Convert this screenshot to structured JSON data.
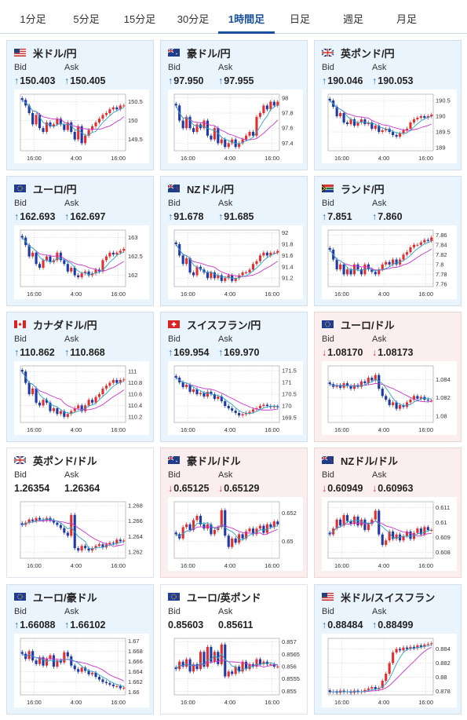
{
  "tabs": [
    "1分足",
    "5分足",
    "15分足",
    "30分足",
    "1時間足",
    "日足",
    "週足",
    "月足"
  ],
  "active_tab": "1時間足",
  "labels": {
    "bid": "Bid",
    "ask": "Ask"
  },
  "colors": {
    "up_bg": "#eaf4fc",
    "down_bg": "#fbeeee",
    "neutral_bg": "#ffffff",
    "bull_candle": "#e23030",
    "bear_candle": "#1f3aa8",
    "ma_slow": "#cc33cc",
    "ma_fast": "#27a4c8",
    "tab_active": "#1a4f9c"
  },
  "pairs": [
    {
      "name": "米ドル/円",
      "flag": "us-flag-icon",
      "trend": "up",
      "bid_dir": "up",
      "ask_dir": "up",
      "bid": "150.403",
      "ask": "150.405",
      "chart_data": {
        "type": "candlestick",
        "x_ticks": [
          "16:00",
          "4:00",
          "16:00"
        ],
        "y_ticks": [
          "150.5",
          "150",
          "149.5"
        ],
        "ylim": [
          149.2,
          150.7
        ],
        "close": [
          150.55,
          150.4,
          150.2,
          149.9,
          150.15,
          149.8,
          149.7,
          149.95,
          149.85,
          149.9,
          150.05,
          149.9,
          149.75,
          149.95,
          149.7,
          149.5,
          149.85,
          149.4,
          149.6,
          149.75,
          149.85,
          149.95,
          150.05,
          150.15,
          150.2,
          150.3,
          150.35,
          150.3,
          150.4,
          150.4
        ]
      }
    },
    {
      "name": "豪ドル/円",
      "flag": "au-flag-icon",
      "trend": "up",
      "bid_dir": "up",
      "ask_dir": "up",
      "bid": "97.950",
      "ask": "97.955",
      "chart_data": {
        "type": "candlestick",
        "x_ticks": [
          "16:00",
          "4:00",
          "16:00"
        ],
        "y_ticks": [
          "98",
          "97.8",
          "97.6",
          "97.4"
        ],
        "ylim": [
          97.3,
          98.05
        ],
        "close": [
          97.9,
          97.7,
          97.6,
          97.75,
          97.6,
          97.55,
          97.65,
          97.6,
          97.7,
          97.5,
          97.45,
          97.6,
          97.4,
          97.45,
          97.35,
          97.4,
          97.45,
          97.35,
          97.4,
          97.45,
          97.5,
          97.55,
          97.5,
          97.75,
          97.8,
          97.9,
          97.85,
          97.95,
          97.9,
          97.95
        ]
      }
    },
    {
      "name": "英ポンド/円",
      "flag": "uk-flag-icon",
      "trend": "up",
      "bid_dir": "up",
      "ask_dir": "up",
      "bid": "190.046",
      "ask": "190.053",
      "chart_data": {
        "type": "candlestick",
        "x_ticks": [
          "16:00",
          "4:00",
          "16:00"
        ],
        "y_ticks": [
          "190.5",
          "190",
          "189.5",
          "189"
        ],
        "ylim": [
          188.9,
          190.7
        ],
        "close": [
          190.5,
          190.3,
          190.0,
          190.1,
          189.8,
          189.75,
          189.9,
          189.7,
          189.8,
          189.9,
          189.75,
          189.8,
          189.6,
          189.7,
          189.5,
          189.55,
          189.6,
          189.5,
          189.4,
          189.35,
          189.45,
          189.55,
          189.6,
          189.8,
          189.9,
          189.95,
          190.0,
          189.95,
          190.0,
          190.05
        ]
      }
    },
    {
      "name": "ユーロ/円",
      "flag": "eu-flag-icon",
      "trend": "up",
      "bid_dir": "up",
      "ask_dir": "up",
      "bid": "162.693",
      "ask": "162.697",
      "chart_data": {
        "type": "candlestick",
        "x_ticks": [
          "16:00",
          "4:00",
          "16:00"
        ],
        "y_ticks": [
          "163",
          "162.5",
          "162"
        ],
        "ylim": [
          161.7,
          163.2
        ],
        "close": [
          163.0,
          162.8,
          162.5,
          162.6,
          162.3,
          162.2,
          162.4,
          162.5,
          162.35,
          162.4,
          162.6,
          162.4,
          162.3,
          162.1,
          162.2,
          162.0,
          161.95,
          162.05,
          162.1,
          162.0,
          162.05,
          162.15,
          162.1,
          162.4,
          162.5,
          162.6,
          162.55,
          162.6,
          162.65,
          162.7
        ]
      }
    },
    {
      "name": "NZドル/円",
      "flag": "nz-flag-icon",
      "trend": "up",
      "bid_dir": "up",
      "ask_dir": "up",
      "bid": "91.678",
      "ask": "91.685",
      "chart_data": {
        "type": "candlestick",
        "x_ticks": [
          "16:00",
          "4:00",
          "16:00"
        ],
        "y_ticks": [
          "92",
          "91.8",
          "91.6",
          "91.4",
          "91.2"
        ],
        "ylim": [
          91.05,
          92.05
        ],
        "close": [
          91.8,
          91.6,
          91.45,
          91.55,
          91.3,
          91.25,
          91.4,
          91.35,
          91.3,
          91.2,
          91.3,
          91.2,
          91.25,
          91.15,
          91.2,
          91.25,
          91.15,
          91.2,
          91.25,
          91.3,
          91.3,
          91.35,
          91.45,
          91.5,
          91.6,
          91.65,
          91.6,
          91.65,
          91.65,
          91.68
        ]
      }
    },
    {
      "name": "ランド/円",
      "flag": "za-flag-icon",
      "trend": "up",
      "bid_dir": "up",
      "ask_dir": "up",
      "bid": "7.851",
      "ask": "7.860",
      "chart_data": {
        "type": "candlestick",
        "x_ticks": [
          "16:00",
          "4:00",
          "16:00"
        ],
        "y_ticks": [
          "7.86",
          "7.84",
          "7.82",
          "7.8",
          "7.78",
          "7.76"
        ],
        "ylim": [
          7.755,
          7.87
        ],
        "close": [
          7.83,
          7.81,
          7.79,
          7.8,
          7.78,
          7.79,
          7.78,
          7.8,
          7.79,
          7.78,
          7.8,
          7.79,
          7.785,
          7.78,
          7.79,
          7.8,
          7.805,
          7.8,
          7.81,
          7.8,
          7.81,
          7.82,
          7.825,
          7.835,
          7.84,
          7.84,
          7.845,
          7.85,
          7.848,
          7.855
        ]
      }
    },
    {
      "name": "カナダドル/円",
      "flag": "ca-flag-icon",
      "trend": "up",
      "bid_dir": "up",
      "ask_dir": "up",
      "bid": "110.862",
      "ask": "110.868",
      "chart_data": {
        "type": "candlestick",
        "x_ticks": [
          "16:00",
          "4:00",
          "16:00"
        ],
        "y_ticks": [
          "111",
          "110.8",
          "110.6",
          "110.4",
          "110.2"
        ],
        "ylim": [
          110.1,
          111.1
        ],
        "close": [
          111.0,
          110.8,
          110.6,
          110.7,
          110.45,
          110.4,
          110.5,
          110.45,
          110.3,
          110.35,
          110.25,
          110.3,
          110.2,
          110.25,
          110.3,
          110.35,
          110.4,
          110.3,
          110.4,
          110.5,
          110.45,
          110.55,
          110.6,
          110.7,
          110.75,
          110.8,
          110.85,
          110.8,
          110.85,
          110.86
        ]
      }
    },
    {
      "name": "スイスフラン/円",
      "flag": "ch-flag-icon",
      "trend": "up",
      "bid_dir": "up",
      "ask_dir": "up",
      "bid": "169.954",
      "ask": "169.970",
      "chart_data": {
        "type": "candlestick",
        "x_ticks": [
          "16:00",
          "4:00",
          "16:00"
        ],
        "y_ticks": [
          "171.5",
          "171",
          "170.5",
          "170",
          "169.5"
        ],
        "ylim": [
          169.3,
          171.7
        ],
        "close": [
          171.2,
          171.0,
          170.8,
          170.9,
          170.6,
          170.7,
          170.5,
          170.55,
          170.4,
          170.6,
          170.5,
          170.3,
          170.4,
          170.2,
          170.0,
          169.9,
          169.8,
          169.7,
          169.6,
          169.65,
          169.7,
          169.75,
          169.85,
          169.9,
          170.0,
          170.05,
          170.0,
          169.95,
          169.98,
          169.95
        ]
      }
    },
    {
      "name": "ユーロ/ドル",
      "flag": "eu-flag-icon",
      "trend": "down",
      "bid_dir": "down",
      "ask_dir": "down",
      "bid": "1.08170",
      "ask": "1.08173",
      "chart_data": {
        "type": "candlestick",
        "x_ticks": [
          "16:00",
          "4:00",
          "16:00"
        ],
        "y_ticks": [
          "1.084",
          "1.082",
          "1.08"
        ],
        "ylim": [
          1.0793,
          1.0855
        ],
        "close": [
          1.0835,
          1.0832,
          1.0834,
          1.0831,
          1.0836,
          1.0833,
          1.083,
          1.0834,
          1.0832,
          1.0838,
          1.0836,
          1.0842,
          1.0839,
          1.0845,
          1.083,
          1.0822,
          1.0818,
          1.0812,
          1.0815,
          1.0808,
          1.0812,
          1.081,
          1.0815,
          1.0818,
          1.0822,
          1.0819,
          1.0821,
          1.0818,
          1.0817,
          1.0817
        ]
      }
    },
    {
      "name": "英ポンド/ドル",
      "flag": "uk-flag-icon",
      "trend": "neutral",
      "bid_dir": "none",
      "ask_dir": "none",
      "bid": "1.26354",
      "ask": "1.26364",
      "chart_data": {
        "type": "candlestick",
        "x_ticks": [
          "16:00",
          "4:00",
          "16:00"
        ],
        "y_ticks": [
          "1.268",
          "1.266",
          "1.264",
          "1.262"
        ],
        "ylim": [
          1.2612,
          1.2685
        ],
        "close": [
          1.2655,
          1.2658,
          1.2662,
          1.266,
          1.2664,
          1.2662,
          1.2661,
          1.2664,
          1.2661,
          1.2658,
          1.2655,
          1.2651,
          1.2645,
          1.2641,
          1.2668,
          1.2625,
          1.2622,
          1.2628,
          1.2625,
          1.2622,
          1.2625,
          1.2628,
          1.263,
          1.2626,
          1.263,
          1.2632,
          1.2631,
          1.2636,
          1.2634,
          1.2635
        ]
      }
    },
    {
      "name": "豪ドル/ドル",
      "flag": "au-flag-icon",
      "trend": "down",
      "bid_dir": "down",
      "ask_dir": "down",
      "bid": "0.65125",
      "ask": "0.65129",
      "chart_data": {
        "type": "candlestick",
        "x_ticks": [
          "16:00",
          "4:00",
          "16:00"
        ],
        "y_ticks": [
          "0.652",
          "0.65"
        ],
        "ylim": [
          0.6488,
          0.6528
        ],
        "close": [
          0.6505,
          0.6502,
          0.651,
          0.6512,
          0.6508,
          0.6515,
          0.6518,
          0.6512,
          0.6509,
          0.6512,
          0.6505,
          0.6508,
          0.651,
          0.6522,
          0.6504,
          0.6496,
          0.6502,
          0.6499,
          0.6505,
          0.6502,
          0.6507,
          0.6509,
          0.6505,
          0.6509,
          0.6511,
          0.6506,
          0.6512,
          0.651,
          0.6514,
          0.6512
        ]
      }
    },
    {
      "name": "NZドル/ドル",
      "flag": "nz-flag-icon",
      "trend": "down",
      "bid_dir": "down",
      "ask_dir": "down",
      "bid": "0.60949",
      "ask": "0.60963",
      "chart_data": {
        "type": "candlestick",
        "x_ticks": [
          "16:00",
          "4:00",
          "16:00"
        ],
        "y_ticks": [
          "0.611",
          "0.61",
          "0.609",
          "0.608"
        ],
        "ylim": [
          0.6076,
          0.6114
        ],
        "close": [
          0.6092,
          0.6096,
          0.6102,
          0.6098,
          0.6105,
          0.6101,
          0.6099,
          0.6104,
          0.6098,
          0.6102,
          0.6095,
          0.6099,
          0.6102,
          0.6108,
          0.6092,
          0.6085,
          0.6088,
          0.6094,
          0.6089,
          0.6092,
          0.6088,
          0.6091,
          0.6094,
          0.6089,
          0.6093,
          0.6096,
          0.6092,
          0.6097,
          0.6095,
          0.6095
        ]
      }
    },
    {
      "name": "ユーロ/豪ドル",
      "flag": "eu-flag-icon",
      "trend": "up",
      "bid_dir": "up",
      "ask_dir": "up",
      "bid": "1.66088",
      "ask": "1.66102",
      "chart_data": {
        "type": "candlestick",
        "x_ticks": [
          "16:00",
          "4:00",
          "16:00"
        ],
        "y_ticks": [
          "1.67",
          "1.668",
          "1.666",
          "1.664",
          "1.662",
          "1.66"
        ],
        "ylim": [
          1.6595,
          1.6705
        ],
        "close": [
          1.6675,
          1.6665,
          1.668,
          1.6662,
          1.6655,
          1.6668,
          1.6652,
          1.6665,
          1.6672,
          1.665,
          1.6662,
          1.6658,
          1.6678,
          1.667,
          1.6652,
          1.6645,
          1.664,
          1.6648,
          1.6642,
          1.6635,
          1.6638,
          1.663,
          1.6625,
          1.662,
          1.6618,
          1.6615,
          1.6612,
          1.6612,
          1.6608,
          1.6609
        ]
      }
    },
    {
      "name": "ユーロ/英ポンド",
      "flag": "eu-flag-icon",
      "trend": "neutral",
      "bid_dir": "none",
      "ask_dir": "none",
      "bid": "0.85603",
      "ask": "0.85611",
      "chart_data": {
        "type": "candlestick",
        "x_ticks": [
          "16:00",
          "4:00",
          "16:00"
        ],
        "y_ticks": [
          "0.857",
          "0.8565",
          "0.856",
          "0.8555",
          "0.855"
        ],
        "ylim": [
          0.85485,
          0.85715
        ],
        "close": [
          0.8559,
          0.8562,
          0.856,
          0.8563,
          0.8558,
          0.8561,
          0.8559,
          0.8566,
          0.856,
          0.8568,
          0.8562,
          0.8566,
          0.8561,
          0.8569,
          0.8556,
          0.8558,
          0.8557,
          0.856,
          0.8558,
          0.8562,
          0.8559,
          0.8561,
          0.856,
          0.8563,
          0.8561,
          0.8562,
          0.8561,
          0.8561,
          0.856,
          0.856
        ]
      }
    },
    {
      "name": "米ドル/スイスフラン",
      "flag": "us-flag-icon",
      "trend": "up",
      "bid_dir": "up",
      "ask_dir": "up",
      "bid": "0.88484",
      "ask": "0.88499",
      "chart_data": {
        "type": "candlestick",
        "x_ticks": [
          "16:00",
          "4:00",
          "16:00"
        ],
        "y_ticks": [
          "0.884",
          "0.882",
          "0.88",
          "0.878"
        ],
        "ylim": [
          0.8775,
          0.8855
        ],
        "close": [
          0.8779,
          0.878,
          0.8778,
          0.8781,
          0.8779,
          0.878,
          0.8778,
          0.8781,
          0.8779,
          0.878,
          0.8782,
          0.8784,
          0.8786,
          0.8783,
          0.8785,
          0.8795,
          0.8805,
          0.882,
          0.8835,
          0.884,
          0.8838,
          0.8842,
          0.884,
          0.8843,
          0.8841,
          0.8845,
          0.8843,
          0.8846,
          0.8847,
          0.8848
        ]
      }
    }
  ]
}
